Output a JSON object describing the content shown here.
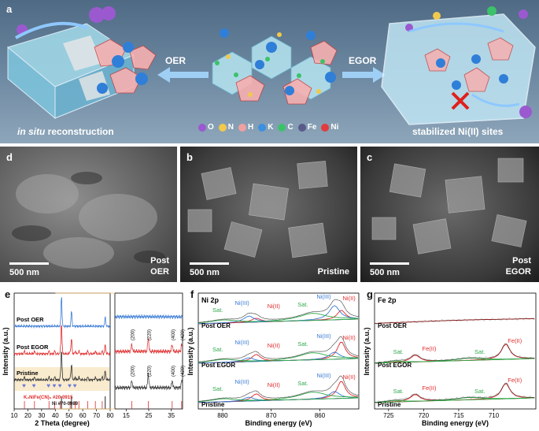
{
  "panel_a": {
    "label": "a",
    "left_caption_italic": "in situ",
    "left_caption_rest": " reconstruction",
    "right_caption": "stabilized Ni(II) sites",
    "left_arrow_label": "OER",
    "right_arrow_label": "EGOR",
    "legend": [
      {
        "symbol": "O",
        "color": "#9b59d0"
      },
      {
        "symbol": "N",
        "color": "#f2c94c"
      },
      {
        "symbol": "H",
        "color": "#f0a0a0"
      },
      {
        "symbol": "K",
        "color": "#3d8fe0"
      },
      {
        "symbol": "C",
        "color": "#3cc26a"
      },
      {
        "symbol": "Fe",
        "color": "#5a5a8a"
      },
      {
        "symbol": "Ni",
        "color": "#e23b3b"
      }
    ]
  },
  "sem_panels": [
    {
      "label": "d",
      "scale": "500 nm",
      "tag_line1": "Post",
      "tag_line2": "OER"
    },
    {
      "label": "b",
      "scale": "500 nm",
      "tag_line1": "",
      "tag_line2": "Pristine"
    },
    {
      "label": "c",
      "scale": "500 nm",
      "tag_line1": "Post",
      "tag_line2": "EGOR"
    }
  ],
  "chart_data": [
    {
      "panel": "e",
      "type": "line",
      "xlabel": "2 Theta (degree)",
      "ylabel": "Intensity (a.u.)",
      "xticks": [
        10,
        20,
        30,
        40,
        50,
        60,
        70,
        80
      ],
      "xlim": [
        10,
        80
      ],
      "series": [
        {
          "name": "Post OER",
          "color": "#3a7bd5"
        },
        {
          "name": "Post EGOR",
          "color": "#e02b2b"
        },
        {
          "name": "Pristine",
          "color": "#333333"
        }
      ],
      "references": [
        {
          "name": "K₂NiFe(CN)₆ #20-0915",
          "color": "#e02b2b"
        },
        {
          "name": "Ni #70-0989",
          "color": "#222222"
        }
      ],
      "ni_peaks": [
        44.5,
        51.8,
        76.4
      ],
      "ref_peaks": [
        17.5,
        24.8,
        35.4,
        39.6,
        43.7,
        50.8,
        54.6,
        57.2,
        63.6,
        69.2,
        74.2
      ],
      "inset": {
        "xticks": [
          15,
          25,
          35
        ],
        "xlim": [
          10,
          40
        ],
        "peaks": [
          17.5,
          24.8,
          35.4,
          39.6
        ],
        "peak_labels": [
          "(200)",
          "(220)",
          "(400)",
          "(420)"
        ]
      }
    },
    {
      "panel": "f",
      "type": "line",
      "title": "Ni 2p",
      "xlabel": "Binding energy (eV)",
      "ylabel": "Intensity (a.u.)",
      "xticks": [
        880,
        870,
        860
      ],
      "xlim": [
        885,
        852
      ],
      "spectra": [
        "Post OER",
        "Post EGOR",
        "Pristine"
      ],
      "peak_labels": [
        "Sat.",
        "Ni(III)",
        "Ni(II)",
        "Sat.",
        "Ni(III)",
        "Ni(II)"
      ],
      "peaks": {
        "Ni(II) 2p3/2": 855.6,
        "Ni(III) 2p3/2": 857.0,
        "Sat. 2p3/2": 861.5,
        "Ni(II) 2p1/2": 873.1,
        "Ni(III) 2p1/2": 874.6,
        "Sat. 2p1/2": 879.8
      }
    },
    {
      "panel": "g",
      "type": "line",
      "title": "Fe 2p",
      "xlabel": "Binding energy (eV)",
      "ylabel": "Intensity (a.u.)",
      "xticks": [
        725,
        720,
        715,
        710
      ],
      "xlim": [
        727,
        704
      ],
      "spectra": [
        "Post OER",
        "Post EGOR",
        "Pristine"
      ],
      "peak_labels": [
        "Sat.",
        "Fe(II)",
        "Sat.",
        "Fe(II)"
      ],
      "peaks": {
        "Fe(II) 2p3/2": 708.3,
        "Fe(II) 2p1/2": 721.2,
        "Sat. 2p3/2": 713.5,
        "Sat. 2p1/2": 724.0
      }
    }
  ]
}
